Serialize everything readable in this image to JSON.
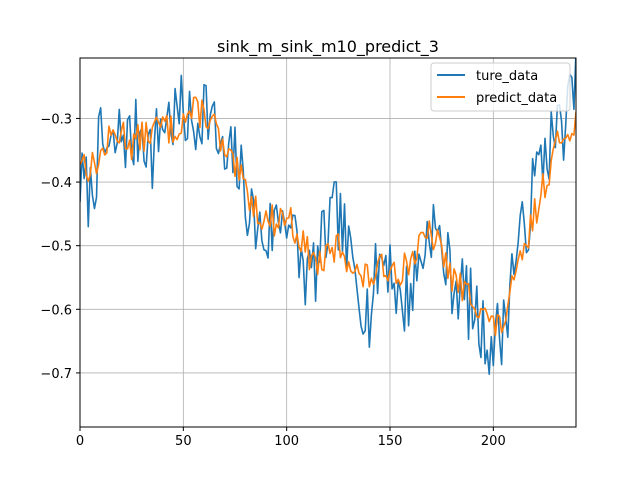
{
  "chart_data": {
    "type": "line",
    "title": "sink_m_sink_m10_predict_3",
    "xlabel": "",
    "ylabel": "",
    "xlim": [
      0,
      240
    ],
    "ylim": [
      -0.785,
      -0.205
    ],
    "xticks": [
      0,
      50,
      100,
      150,
      200
    ],
    "yticks": [
      -0.7,
      -0.6,
      -0.5,
      -0.4,
      -0.3
    ],
    "xtick_labels": [
      "0",
      "50",
      "100",
      "150",
      "200"
    ],
    "ytick_labels": [
      "−0.7",
      "−0.6",
      "−0.5",
      "−0.4",
      "−0.3"
    ],
    "grid": true,
    "legend_position": "top-right",
    "x_anchor_step": 5,
    "series": [
      {
        "name": "ture_data",
        "color": "#1f77b4",
        "anchors": [
          -0.4,
          -0.42,
          -0.34,
          -0.36,
          -0.32,
          -0.34,
          -0.31,
          -0.36,
          -0.3,
          -0.3,
          -0.29,
          -0.32,
          -0.27,
          -0.32,
          -0.38,
          -0.36,
          -0.42,
          -0.47,
          -0.49,
          -0.46,
          -0.44,
          -0.51,
          -0.55,
          -0.53,
          -0.47,
          -0.45,
          -0.52,
          -0.56,
          -0.61,
          -0.52,
          -0.52,
          -0.6,
          -0.57,
          -0.52,
          -0.46,
          -0.51,
          -0.55,
          -0.57,
          -0.6,
          -0.64,
          -0.65,
          -0.63,
          -0.52,
          -0.48,
          -0.4,
          -0.35,
          -0.33,
          -0.3,
          -0.25,
          -0.28
        ],
        "amplitude": 0.06,
        "seed": 7
      },
      {
        "name": "predict_data",
        "color": "#ff7f0e",
        "anchors": [
          -0.36,
          -0.38,
          -0.36,
          -0.33,
          -0.32,
          -0.34,
          -0.33,
          -0.32,
          -0.31,
          -0.32,
          -0.3,
          -0.29,
          -0.29,
          -0.31,
          -0.36,
          -0.38,
          -0.41,
          -0.44,
          -0.46,
          -0.46,
          -0.45,
          -0.48,
          -0.51,
          -0.53,
          -0.52,
          -0.5,
          -0.52,
          -0.55,
          -0.55,
          -0.54,
          -0.53,
          -0.54,
          -0.52,
          -0.5,
          -0.48,
          -0.51,
          -0.55,
          -0.57,
          -0.58,
          -0.6,
          -0.63,
          -0.62,
          -0.56,
          -0.51,
          -0.45,
          -0.4,
          -0.35,
          -0.32,
          -0.3,
          -0.3
        ],
        "amplitude": 0.025,
        "seed": 13
      }
    ]
  }
}
